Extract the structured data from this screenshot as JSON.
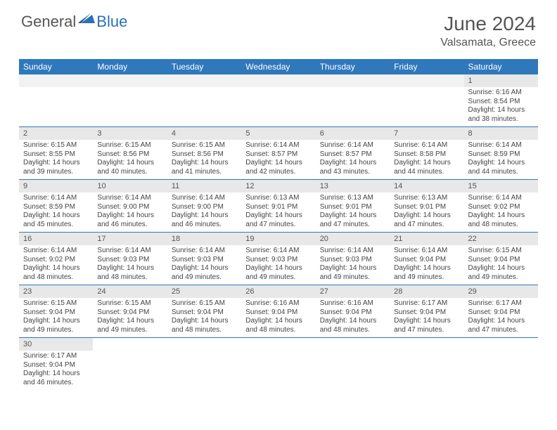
{
  "logo": {
    "text1": "General",
    "text2": "Blue"
  },
  "title": "June 2024",
  "location": "Valsamata, Greece",
  "colors": {
    "header_bg": "#2f78bc",
    "header_text": "#ffffff",
    "daynum_bg": "#e8e8e8",
    "border": "#2f78bc",
    "logo_accent": "#2a72b5",
    "text_muted": "#555555",
    "page_bg": "#ffffff"
  },
  "calendar": {
    "type": "table",
    "columns": [
      "Sunday",
      "Monday",
      "Tuesday",
      "Wednesday",
      "Thursday",
      "Friday",
      "Saturday"
    ],
    "firstDayOffset": 6,
    "days": [
      {
        "n": 1,
        "sunrise": "6:16 AM",
        "sunset": "8:54 PM",
        "daylight": "14 hours and 38 minutes."
      },
      {
        "n": 2,
        "sunrise": "6:15 AM",
        "sunset": "8:55 PM",
        "daylight": "14 hours and 39 minutes."
      },
      {
        "n": 3,
        "sunrise": "6:15 AM",
        "sunset": "8:56 PM",
        "daylight": "14 hours and 40 minutes."
      },
      {
        "n": 4,
        "sunrise": "6:15 AM",
        "sunset": "8:56 PM",
        "daylight": "14 hours and 41 minutes."
      },
      {
        "n": 5,
        "sunrise": "6:14 AM",
        "sunset": "8:57 PM",
        "daylight": "14 hours and 42 minutes."
      },
      {
        "n": 6,
        "sunrise": "6:14 AM",
        "sunset": "8:57 PM",
        "daylight": "14 hours and 43 minutes."
      },
      {
        "n": 7,
        "sunrise": "6:14 AM",
        "sunset": "8:58 PM",
        "daylight": "14 hours and 44 minutes."
      },
      {
        "n": 8,
        "sunrise": "6:14 AM",
        "sunset": "8:59 PM",
        "daylight": "14 hours and 44 minutes."
      },
      {
        "n": 9,
        "sunrise": "6:14 AM",
        "sunset": "8:59 PM",
        "daylight": "14 hours and 45 minutes."
      },
      {
        "n": 10,
        "sunrise": "6:14 AM",
        "sunset": "9:00 PM",
        "daylight": "14 hours and 46 minutes."
      },
      {
        "n": 11,
        "sunrise": "6:14 AM",
        "sunset": "9:00 PM",
        "daylight": "14 hours and 46 minutes."
      },
      {
        "n": 12,
        "sunrise": "6:13 AM",
        "sunset": "9:01 PM",
        "daylight": "14 hours and 47 minutes."
      },
      {
        "n": 13,
        "sunrise": "6:13 AM",
        "sunset": "9:01 PM",
        "daylight": "14 hours and 47 minutes."
      },
      {
        "n": 14,
        "sunrise": "6:13 AM",
        "sunset": "9:01 PM",
        "daylight": "14 hours and 47 minutes."
      },
      {
        "n": 15,
        "sunrise": "6:14 AM",
        "sunset": "9:02 PM",
        "daylight": "14 hours and 48 minutes."
      },
      {
        "n": 16,
        "sunrise": "6:14 AM",
        "sunset": "9:02 PM",
        "daylight": "14 hours and 48 minutes."
      },
      {
        "n": 17,
        "sunrise": "6:14 AM",
        "sunset": "9:03 PM",
        "daylight": "14 hours and 48 minutes."
      },
      {
        "n": 18,
        "sunrise": "6:14 AM",
        "sunset": "9:03 PM",
        "daylight": "14 hours and 49 minutes."
      },
      {
        "n": 19,
        "sunrise": "6:14 AM",
        "sunset": "9:03 PM",
        "daylight": "14 hours and 49 minutes."
      },
      {
        "n": 20,
        "sunrise": "6:14 AM",
        "sunset": "9:03 PM",
        "daylight": "14 hours and 49 minutes."
      },
      {
        "n": 21,
        "sunrise": "6:14 AM",
        "sunset": "9:04 PM",
        "daylight": "14 hours and 49 minutes."
      },
      {
        "n": 22,
        "sunrise": "6:15 AM",
        "sunset": "9:04 PM",
        "daylight": "14 hours and 49 minutes."
      },
      {
        "n": 23,
        "sunrise": "6:15 AM",
        "sunset": "9:04 PM",
        "daylight": "14 hours and 49 minutes."
      },
      {
        "n": 24,
        "sunrise": "6:15 AM",
        "sunset": "9:04 PM",
        "daylight": "14 hours and 49 minutes."
      },
      {
        "n": 25,
        "sunrise": "6:15 AM",
        "sunset": "9:04 PM",
        "daylight": "14 hours and 48 minutes."
      },
      {
        "n": 26,
        "sunrise": "6:16 AM",
        "sunset": "9:04 PM",
        "daylight": "14 hours and 48 minutes."
      },
      {
        "n": 27,
        "sunrise": "6:16 AM",
        "sunset": "9:04 PM",
        "daylight": "14 hours and 48 minutes."
      },
      {
        "n": 28,
        "sunrise": "6:17 AM",
        "sunset": "9:04 PM",
        "daylight": "14 hours and 47 minutes."
      },
      {
        "n": 29,
        "sunrise": "6:17 AM",
        "sunset": "9:04 PM",
        "daylight": "14 hours and 47 minutes."
      },
      {
        "n": 30,
        "sunrise": "6:17 AM",
        "sunset": "9:04 PM",
        "daylight": "14 hours and 46 minutes."
      }
    ],
    "labels": {
      "sunrise": "Sunrise:",
      "sunset": "Sunset:",
      "daylight": "Daylight:"
    }
  }
}
